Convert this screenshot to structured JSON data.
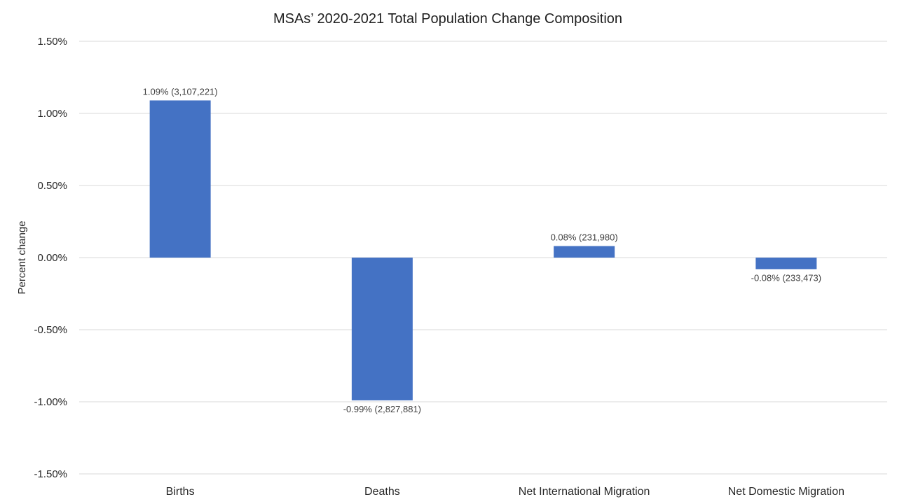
{
  "chart_data": {
    "type": "bar",
    "title": "MSAs’ 2020-2021 Total Population Change Composition",
    "xlabel": "",
    "ylabel": "Percent change",
    "ylim": [
      -1.5,
      1.5
    ],
    "y_ticks": [
      1.5,
      1.0,
      0.5,
      0.0,
      -0.5,
      -1.0,
      -1.5
    ],
    "y_tick_labels": [
      "1.50%",
      "1.00%",
      "0.50%",
      "0.00%",
      "-0.50%",
      "-1.00%",
      "-1.50%"
    ],
    "categories": [
      "Births",
      "Deaths",
      "Net International Migration",
      "Net Domestic Migration"
    ],
    "values": [
      1.09,
      -0.99,
      0.08,
      -0.08
    ],
    "data_labels": [
      "1.09% (3,107,221)",
      "-0.99% (2,827,881)",
      "0.08% (231,980)",
      "-0.08% (233,473)"
    ],
    "bar_color": "#4472C4",
    "grid": true,
    "legend": "none"
  }
}
